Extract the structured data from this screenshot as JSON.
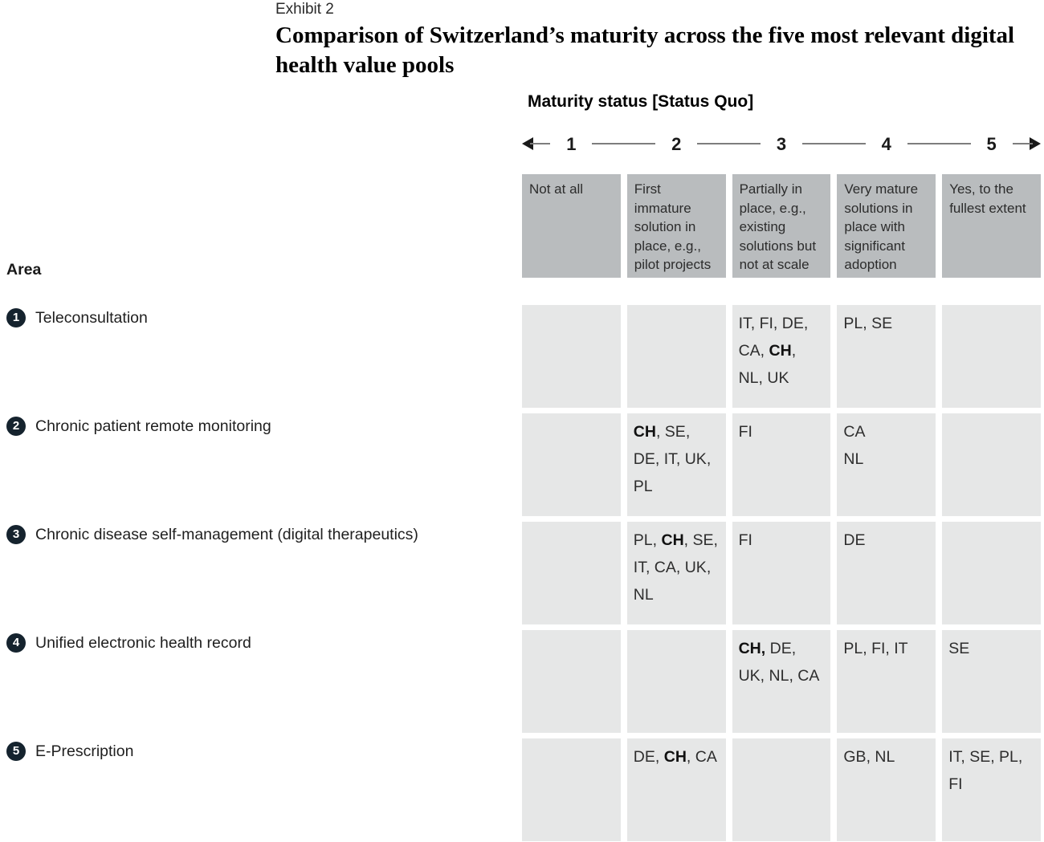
{
  "exhibit": {
    "label": "Exhibit 2",
    "title": "Comparison of Switzerland’s maturity across the five most relevant digital health value pools"
  },
  "maturity": {
    "heading": "Maturity status [Status Quo]",
    "scale_numbers": [
      "1",
      "2",
      "3",
      "4",
      "5"
    ],
    "column_headers": [
      "Not at all",
      "First immature solution in place, e.g., pilot projects",
      "Partially in place, e.g., existing solutions but not at scale",
      "Very mature solutions in place with significant adoption",
      "Yes, to the fullest extent"
    ]
  },
  "area": {
    "label": "Area",
    "rows": [
      {
        "num": "1",
        "label": "Teleconsultation",
        "cells": [
          "",
          "",
          "IT, FI, DE, CA, **CH**, NL, UK",
          "PL, SE",
          ""
        ]
      },
      {
        "num": "2",
        "label": "Chronic patient remote monitoring",
        "cells": [
          "",
          "**CH**, SE, DE, IT, UK, PL",
          "FI",
          "CA\nNL",
          ""
        ]
      },
      {
        "num": "3",
        "label": "Chronic disease self-management (digital therapeutics)",
        "cells": [
          "",
          "PL, **CH**, SE, IT, CA, UK, NL",
          "FI",
          "DE",
          ""
        ]
      },
      {
        "num": "4",
        "label": "Unified electronic health record",
        "cells": [
          "",
          "",
          "**CH,** DE, UK, NL, CA",
          "PL, FI, IT",
          "SE"
        ]
      },
      {
        "num": "5",
        "label": "E-Prescription",
        "cells": [
          "",
          "DE, **CH**, CA",
          "",
          "GB, NL",
          "IT, SE, PL, FI"
        ]
      }
    ]
  },
  "chart_data": {
    "type": "table",
    "title": "Comparison of Switzerland’s maturity across the five most relevant digital health value pools",
    "axis_label": "Maturity status [Status Quo]",
    "axis_range": [
      1,
      5
    ],
    "maturity_levels": [
      {
        "value": 1,
        "description": "Not at all"
      },
      {
        "value": 2,
        "description": "First immature solution in place, e.g., pilot projects"
      },
      {
        "value": 3,
        "description": "Partially in place, e.g., existing solutions but not at scale"
      },
      {
        "value": 4,
        "description": "Very mature solutions in place with significant adoption"
      },
      {
        "value": 5,
        "description": "Yes, to the fullest extent"
      }
    ],
    "highlighted_country": "CH",
    "rows": [
      {
        "area": "Teleconsultation",
        "placements": {
          "3": [
            "IT",
            "FI",
            "DE",
            "CA",
            "CH",
            "NL",
            "UK"
          ],
          "4": [
            "PL",
            "SE"
          ]
        }
      },
      {
        "area": "Chronic patient remote monitoring",
        "placements": {
          "2": [
            "CH",
            "SE",
            "DE",
            "IT",
            "UK",
            "PL"
          ],
          "3": [
            "FI"
          ],
          "4": [
            "CA",
            "NL"
          ]
        }
      },
      {
        "area": "Chronic disease self-management (digital therapeutics)",
        "placements": {
          "2": [
            "PL",
            "CH",
            "SE",
            "IT",
            "CA",
            "UK",
            "NL"
          ],
          "3": [
            "FI"
          ],
          "4": [
            "DE"
          ]
        }
      },
      {
        "area": "Unified electronic health record",
        "placements": {
          "3": [
            "CH",
            "DE",
            "UK",
            "NL",
            "CA"
          ],
          "4": [
            "PL",
            "FI",
            "IT"
          ],
          "5": [
            "SE"
          ]
        }
      },
      {
        "area": "E-Prescription",
        "placements": {
          "2": [
            "DE",
            "CH",
            "CA"
          ],
          "4": [
            "GB",
            "NL"
          ],
          "5": [
            "IT",
            "SE",
            "PL",
            "FI"
          ]
        }
      }
    ]
  },
  "colors": {
    "header_box": "#b9bcbe",
    "cell_box": "#e6e7e7",
    "row_badge": "#15232e",
    "scale_line": "#7d7d7d",
    "arrow": "#1a1a1a"
  }
}
